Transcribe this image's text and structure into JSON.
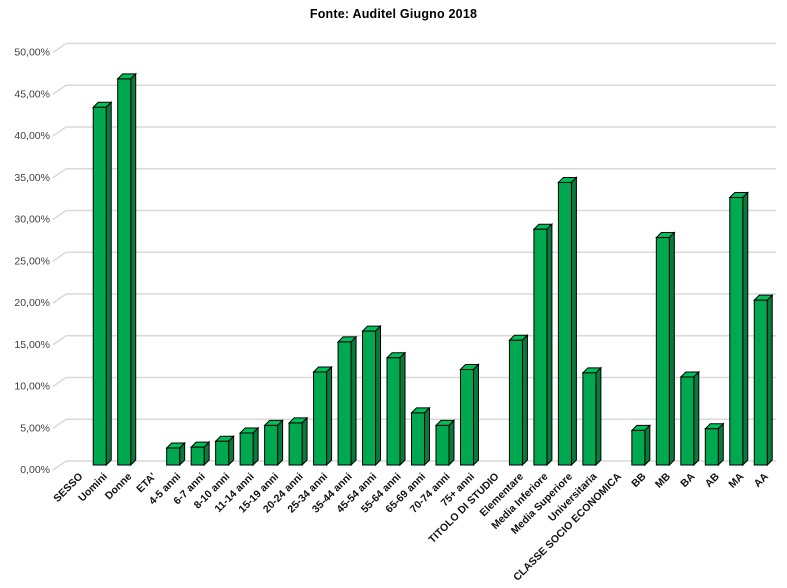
{
  "title": "Fonte: Auditel Giugno 2018",
  "colors": {
    "background": "#ffffff",
    "bar_front": "#00A94F",
    "bar_side": "#087A3C",
    "bar_top": "#00BE5A",
    "bar_stroke": "#000000",
    "gridline": "#D9D9D9",
    "y_label": "#404040",
    "x_label": "#111111",
    "title": "#000000"
  },
  "chart_data": {
    "type": "bar",
    "style": "3d-column",
    "title": "Fonte: Auditel Giugno 2018",
    "xlabel": "",
    "ylabel": "",
    "grid": true,
    "legend": false,
    "ylim": [
      0,
      50
    ],
    "y_tick_step": 5,
    "y_tick_labels": [
      "0,00%",
      "5,00%",
      "10,00%",
      "15,00%",
      "20,00%",
      "25,00%",
      "30,00%",
      "35,00%",
      "40,00%",
      "45,00%",
      "50,00%"
    ],
    "categories": [
      "SESSO",
      "Uomini",
      "Donne",
      "ETA'",
      "4-5 anni",
      "6-7 anni",
      "8-10 anni",
      "11-14 anni",
      "15-19 anni",
      "20-24 anni",
      "25-34 anni",
      "35-44 anni",
      "45-54 anni",
      "55-64 anni",
      "65-69 anni",
      "70-74 anni",
      "75+ anni",
      "TITOLO DI STUDIO",
      "Elementare",
      "Media Inferiore",
      "Media Superiore",
      "Universitaria",
      "CLASSE SOCIO ECONOMICA",
      "BB",
      "MB",
      "BA",
      "AB",
      "MA",
      "AA"
    ],
    "values": [
      null,
      42.6,
      46.0,
      null,
      1.8,
      1.9,
      2.6,
      3.6,
      4.5,
      4.8,
      10.9,
      14.5,
      15.8,
      12.6,
      6.0,
      4.5,
      11.2,
      null,
      14.7,
      28.0,
      33.6,
      10.8,
      null,
      3.9,
      27.0,
      10.3,
      4.1,
      31.8,
      19.5
    ],
    "note": "values are percent shares; header categories (SESSO, ETA', TITOLO DI STUDIO, CLASSE SOCIO ECONOMICA) have no bar"
  }
}
